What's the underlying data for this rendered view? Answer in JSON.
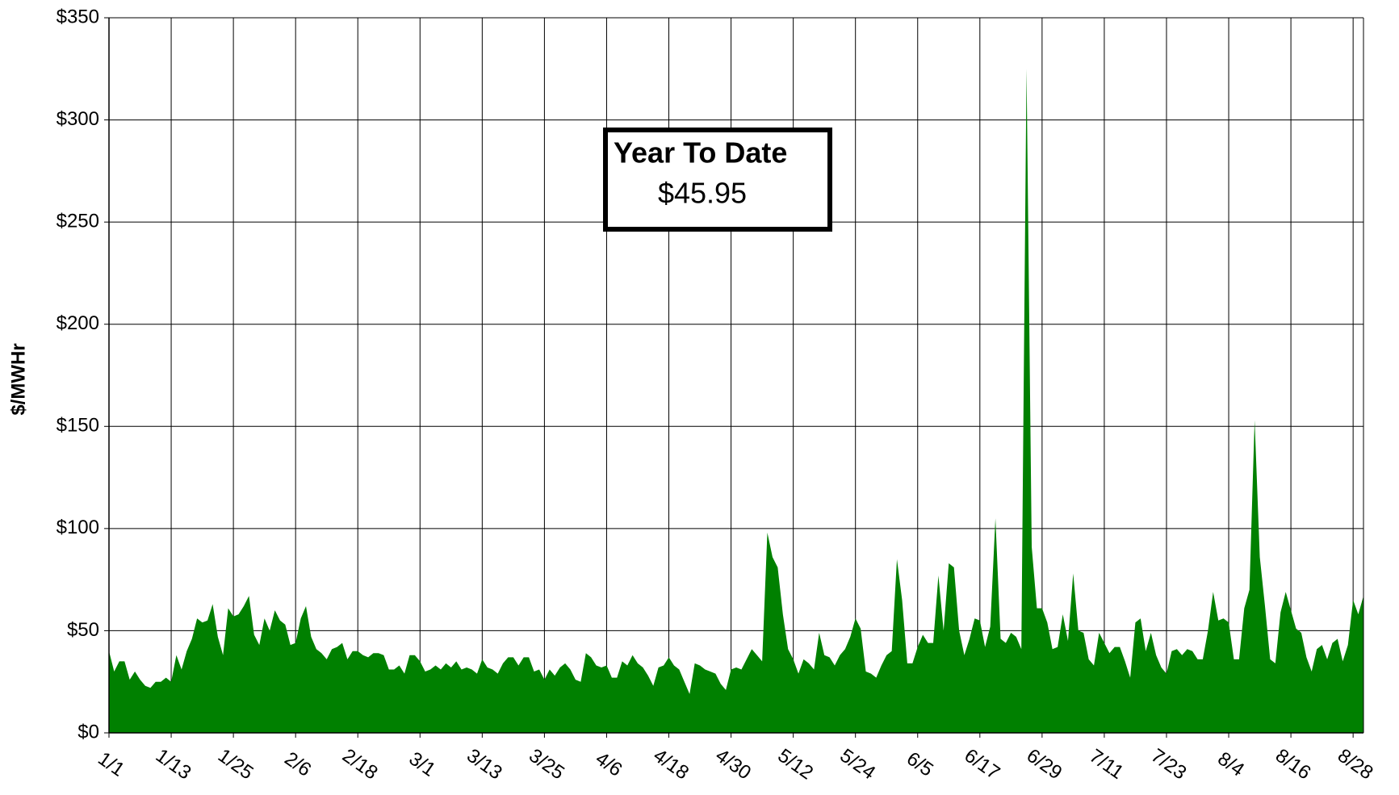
{
  "chart_data": {
    "type": "area",
    "ylabel": "$/MWHr",
    "annotation": {
      "title": "Year To Date",
      "value": "$45.95"
    },
    "color": "#008000",
    "grid": true,
    "ylim": [
      0,
      350
    ],
    "yticks": [
      {
        "value": 0,
        "label": "$0"
      },
      {
        "value": 50,
        "label": "$50"
      },
      {
        "value": 100,
        "label": "$100"
      },
      {
        "value": 150,
        "label": "$150"
      },
      {
        "value": 200,
        "label": "$200"
      },
      {
        "value": 250,
        "label": "$250"
      },
      {
        "value": 300,
        "label": "$300"
      },
      {
        "value": 350,
        "label": "$350"
      }
    ],
    "categories": [
      "1/1",
      null,
      null,
      null,
      null,
      null,
      null,
      null,
      null,
      null,
      null,
      null,
      "1/13",
      null,
      null,
      null,
      null,
      null,
      null,
      null,
      null,
      null,
      null,
      null,
      "1/25",
      null,
      null,
      null,
      null,
      null,
      null,
      null,
      null,
      null,
      null,
      null,
      "2/6",
      null,
      null,
      null,
      null,
      null,
      null,
      null,
      null,
      null,
      null,
      null,
      "2/18",
      null,
      null,
      null,
      null,
      null,
      null,
      null,
      null,
      null,
      null,
      null,
      "3/1",
      null,
      null,
      null,
      null,
      null,
      null,
      null,
      null,
      null,
      null,
      null,
      "3/13",
      null,
      null,
      null,
      null,
      null,
      null,
      null,
      null,
      null,
      null,
      null,
      "3/25",
      null,
      null,
      null,
      null,
      null,
      null,
      null,
      null,
      null,
      null,
      null,
      "4/6",
      null,
      null,
      null,
      null,
      null,
      null,
      null,
      null,
      null,
      null,
      null,
      "4/18",
      null,
      null,
      null,
      null,
      null,
      null,
      null,
      null,
      null,
      null,
      null,
      "4/30",
      null,
      null,
      null,
      null,
      null,
      null,
      null,
      null,
      null,
      null,
      null,
      "5/12",
      null,
      null,
      null,
      null,
      null,
      null,
      null,
      null,
      null,
      null,
      null,
      "5/24",
      null,
      null,
      null,
      null,
      null,
      null,
      null,
      null,
      null,
      null,
      null,
      "6/5",
      null,
      null,
      null,
      null,
      null,
      null,
      null,
      null,
      null,
      null,
      null,
      "6/17",
      null,
      null,
      null,
      null,
      null,
      null,
      null,
      null,
      null,
      null,
      null,
      "6/29",
      null,
      null,
      null,
      null,
      null,
      null,
      null,
      null,
      null,
      null,
      null,
      "7/11",
      null,
      null,
      null,
      null,
      null,
      null,
      null,
      null,
      null,
      null,
      null,
      "7/23",
      null,
      null,
      null,
      null,
      null,
      null,
      null,
      null,
      null,
      null,
      null,
      "8/4",
      null,
      null,
      null,
      null,
      null,
      null,
      null,
      null,
      null,
      null,
      null,
      "8/16",
      null,
      null,
      null,
      null,
      null,
      null,
      null,
      null,
      null,
      null,
      null,
      "8/28",
      null,
      null
    ],
    "values": [
      40,
      30,
      35,
      35,
      26,
      30,
      26,
      23,
      22,
      25,
      25,
      27,
      25,
      38,
      31,
      40,
      46,
      56,
      54,
      55,
      63,
      47,
      38,
      61,
      57,
      58,
      62,
      67,
      48,
      43,
      56,
      50,
      60,
      55,
      53,
      43,
      44,
      56,
      62,
      47,
      41,
      39,
      36,
      41,
      42,
      44,
      36,
      40,
      40,
      38,
      37,
      39,
      39,
      38,
      31,
      31,
      33,
      29,
      38,
      38,
      35,
      30,
      31,
      33,
      31,
      34,
      32,
      35,
      31,
      32,
      31,
      29,
      36,
      32,
      31,
      29,
      34,
      37,
      37,
      33,
      37,
      37,
      30,
      31,
      26,
      31,
      28,
      32,
      34,
      31,
      26,
      25,
      39,
      37,
      33,
      32,
      33,
      27,
      27,
      35,
      33,
      38,
      34,
      32,
      28,
      23,
      32,
      33,
      37,
      33,
      31,
      25,
      19,
      34,
      33,
      31,
      30,
      29,
      24,
      21,
      31,
      32,
      31,
      36,
      41,
      38,
      35,
      98,
      86,
      81,
      58,
      41,
      36,
      29,
      36,
      34,
      31,
      49,
      38,
      37,
      33,
      38,
      41,
      47,
      56,
      51,
      30,
      29,
      27,
      33,
      38,
      40,
      85,
      65,
      34,
      34,
      42,
      48,
      44,
      44,
      77,
      50,
      83,
      81,
      50,
      38,
      46,
      56,
      55,
      42,
      52,
      105,
      46,
      44,
      49,
      47,
      41,
      325,
      91,
      61,
      61,
      54,
      41,
      42,
      58,
      45,
      78,
      50,
      49,
      36,
      33,
      49,
      44,
      39,
      42,
      42,
      35,
      27,
      54,
      56,
      40,
      49,
      38,
      32,
      29,
      40,
      41,
      38,
      41,
      40,
      36,
      36,
      50,
      69,
      55,
      56,
      54,
      36,
      36,
      61,
      70,
      153,
      86,
      62,
      36,
      34,
      59,
      69,
      60,
      51,
      49,
      37,
      30,
      41,
      43,
      36,
      44,
      46,
      35,
      43,
      65,
      58,
      67
    ]
  }
}
